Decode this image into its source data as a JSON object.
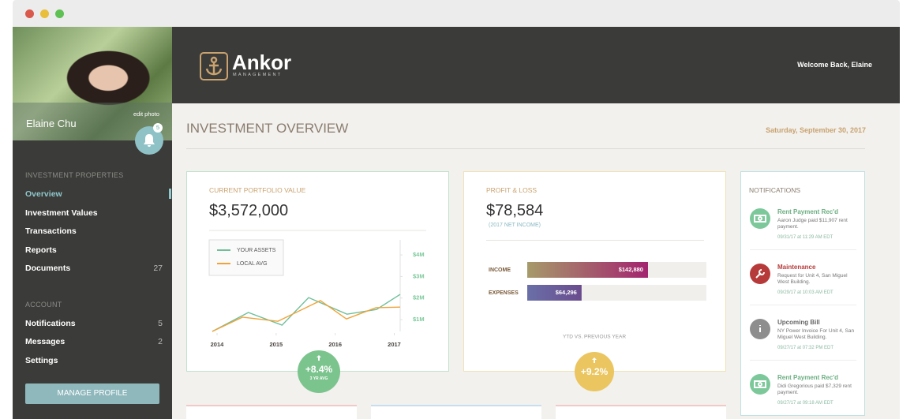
{
  "header": {
    "brand": "Ankor",
    "brand_sub": "MANAGEMENT",
    "welcome": "Welcome Back, Elaine"
  },
  "sidebar": {
    "user_name": "Elaine Chu",
    "edit_photo": "edit photo",
    "notification_count": 5,
    "sections": [
      {
        "title": "INVESTMENT PROPERTIES",
        "items": [
          {
            "label": "Overview"
          },
          {
            "label": "Investment Values"
          },
          {
            "label": "Transactions"
          },
          {
            "label": "Reports"
          },
          {
            "label": "Documents",
            "count": 27
          }
        ]
      },
      {
        "title": "ACCOUNT",
        "items": [
          {
            "label": "Notifications",
            "count": 5
          },
          {
            "label": "Messages",
            "count": 2
          },
          {
            "label": "Settings"
          }
        ]
      }
    ],
    "button": "MANAGE PROFILE"
  },
  "page": {
    "title": "INVESTMENT OVERVIEW",
    "date": "Saturday, September 30, 2017"
  },
  "portfolio": {
    "label": "CURRENT PORTFOLIO VALUE",
    "value": "$3,572,000",
    "badge": "+8.4%",
    "badge_sub": "3 YR AVG"
  },
  "profit_loss": {
    "label": "PROFIT & LOSS",
    "value": "$78,584",
    "sub": "(2017 NET INCOME)",
    "badge": "+9.2%"
  },
  "chart_data": [
    {
      "type": "line",
      "series": [
        {
          "name": "YOUR ASSETS",
          "color": "#6fbf9a",
          "x": [
            2013.92,
            2014.53,
            2015.1,
            2015.55,
            2016.2,
            2016.7,
            2017.1
          ],
          "values": [
            450000,
            1330000,
            740000,
            2020000,
            1250000,
            1470000,
            2170000
          ]
        },
        {
          "name": "LOCAL AVG",
          "color": "#f0a33a",
          "x": [
            2013.92,
            2014.43,
            2015.03,
            2015.75,
            2016.19,
            2016.69,
            2017.1
          ],
          "values": [
            450000,
            1110000,
            920000,
            1880000,
            1030000,
            1550000,
            1580000
          ]
        }
      ],
      "xlim": [
        2013.92,
        2017.1
      ],
      "xticks": [
        2014,
        2015,
        2016,
        2017
      ],
      "ylim": [
        450000,
        4700000
      ],
      "yticks": [
        {
          "value": 1000000,
          "label": "$1M"
        },
        {
          "value": 2000000,
          "label": "$2M"
        },
        {
          "value": 3000000,
          "label": "$3M"
        },
        {
          "value": 4000000,
          "label": "$4M"
        }
      ]
    },
    {
      "type": "barh",
      "categories": [
        "INCOME",
        "EXPENSES"
      ],
      "values": [
        142880,
        64296
      ],
      "value_labels": [
        "$142,880",
        "$64,296"
      ],
      "xlim": [
        0,
        212000
      ],
      "xlabel": "YTD VS. PREVIOUS YEAR"
    }
  ],
  "notifications": {
    "title": "NOTIFICATIONS",
    "items": [
      {
        "title": "Rent Payment Rec'd",
        "text": "Aaron Judge paid $11,907 rent payment.",
        "time": "09/31/17 at 11:29 AM EDT",
        "color": "#7cc89a"
      },
      {
        "title": "Maintenance",
        "text": "Request for Unit 4, San Miguel West Building.",
        "time": "09/29/17 at 10:03 AM EDT",
        "color": "#b73a3a"
      },
      {
        "title": "Upcoming Bill",
        "text": "NY Power Invoice For Unit 4, San Miguel West Building.",
        "time": "09/27/17 at 07:32 PM EDT",
        "color": "#8e8e8e"
      },
      {
        "title": "Rent Payment Rec'd",
        "text": "Didi Gregorious paid $7,329 rent payment.",
        "time": "09/27/17 at 09:18 AM EDT",
        "color": "#7cc89a"
      }
    ]
  }
}
